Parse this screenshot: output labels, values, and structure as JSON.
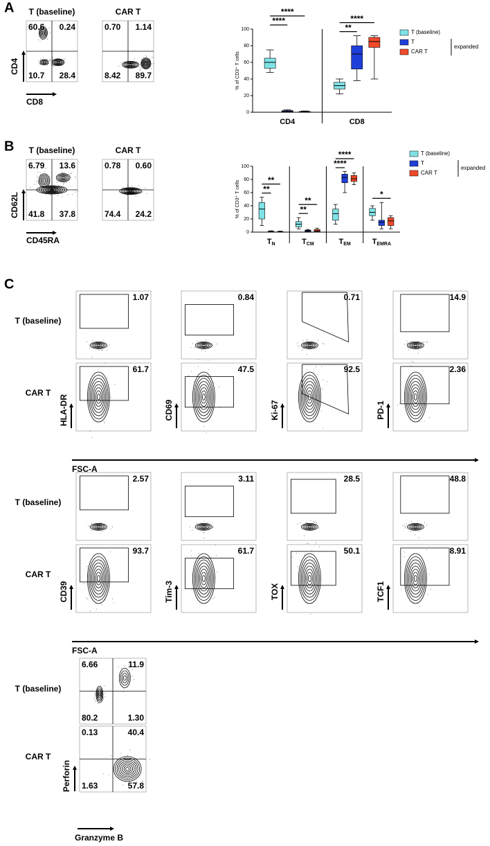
{
  "panel_a": {
    "label": "A",
    "y_axis": "CD4",
    "x_axis": "CD8",
    "plots": [
      {
        "title": "T (baseline)",
        "quadrants": [
          "60.6",
          "0.24",
          "10.7",
          "28.4"
        ]
      },
      {
        "title": "CAR T",
        "quadrants": [
          "0.70",
          "1.14",
          "8.42",
          "89.7"
        ]
      }
    ]
  },
  "panel_b": {
    "label": "B",
    "y_axis": "CD62L",
    "x_axis": "CD45RA",
    "plots": [
      {
        "title": "T (baseline)",
        "quadrants": [
          "6.79",
          "13.6",
          "41.8",
          "37.8"
        ]
      },
      {
        "title": "CAR T",
        "quadrants": [
          "0.78",
          "0.60",
          "74.4",
          "24.2"
        ]
      }
    ]
  },
  "panel_c": {
    "label": "C",
    "groups": [
      {
        "row_labels": [
          "T (baseline)",
          "CAR T"
        ],
        "x_axis": "FSC-A",
        "plots": [
          {
            "marker": "HLA-DR",
            "gates": [
              "1.07",
              "61.7"
            ]
          },
          {
            "marker": "CD69",
            "gates": [
              "0.84",
              "47.5"
            ]
          },
          {
            "marker": "Ki-67",
            "gates": [
              "0.71",
              "92.5"
            ]
          },
          {
            "marker": "PD-1",
            "gates": [
              "14.9",
              "2.36"
            ]
          }
        ]
      },
      {
        "row_labels": [
          "T (baseline)",
          "CAR T"
        ],
        "x_axis": "FSC-A",
        "plots": [
          {
            "marker": "CD39",
            "gates": [
              "2.57",
              "93.7"
            ]
          },
          {
            "marker": "Tim-3",
            "gates": [
              "3.11",
              "61.7"
            ]
          },
          {
            "marker": "TOX",
            "gates": [
              "28.5",
              "50.1"
            ]
          },
          {
            "marker": "TCF1",
            "gates": [
              "48.8",
              "8.91"
            ]
          }
        ]
      }
    ],
    "quadrant_group": {
      "row_labels": [
        "T (baseline)",
        "CAR T"
      ],
      "y_axis": "Perforin",
      "x_axis": "Granzyme B",
      "quadrants": [
        [
          "6.66",
          "11.9",
          "80.2",
          "1.30"
        ],
        [
          "0.13",
          "40.4",
          "1.63",
          "57.8"
        ]
      ]
    }
  },
  "chart_data": [
    {
      "type": "box",
      "y_label": "% of CD3⁺ T cells",
      "categories": [
        "CD4",
        "CD8"
      ],
      "ylim": [
        0,
        100
      ],
      "yticks": [
        0,
        20,
        40,
        60,
        80,
        100
      ],
      "separators": true,
      "legend_note": "expanded",
      "series": [
        {
          "name": "T (baseline)",
          "color": "#7fe3e6",
          "values": [
            [
              48,
              53,
              60,
              65,
              75
            ],
            [
              22,
              28,
              32,
              36,
              40
            ]
          ]
        },
        {
          "name": "T",
          "color": "#1f3fd9",
          "values": [
            [
              0,
              0.5,
              1,
              2,
              3
            ],
            [
              38,
              52,
              70,
              80,
              92
            ]
          ]
        },
        {
          "name": "CAR T",
          "color": "#f04a2a",
          "values": [
            [
              0,
              0.3,
              0.6,
              1,
              1.5
            ],
            [
              40,
              78,
              85,
              90,
              92
            ]
          ]
        }
      ],
      "annotations": [
        {
          "category": 0,
          "pair": [
            0,
            1
          ],
          "text": "****"
        },
        {
          "category": 0,
          "pair": [
            0,
            2
          ],
          "text": "****"
        },
        {
          "category": 1,
          "pair": [
            0,
            1
          ],
          "text": "**"
        },
        {
          "category": 1,
          "pair": [
            0,
            2
          ],
          "text": "****"
        }
      ]
    },
    {
      "type": "box",
      "y_label": "% of CD3⁺ T cells",
      "categories": [
        "TN",
        "TCM",
        "TEM",
        "TEMRA"
      ],
      "ylim": [
        0,
        100
      ],
      "yticks": [
        0,
        20,
        40,
        60,
        80,
        100
      ],
      "separators": true,
      "legend_note": "expanded",
      "series": [
        {
          "name": "T (baseline)",
          "color": "#7fe3e6",
          "values": [
            [
              10,
              20,
              35,
              45,
              53
            ],
            [
              5,
              8,
              12,
              16,
              22
            ],
            [
              12,
              18,
              28,
              35,
              42
            ],
            [
              18,
              25,
              30,
              36,
              40
            ]
          ]
        },
        {
          "name": "T",
          "color": "#1f3fd9",
          "values": [
            [
              0,
              0.5,
              1,
              1.5,
              2
            ],
            [
              0,
              1,
              2,
              3,
              4
            ],
            [
              60,
              75,
              83,
              88,
              92
            ],
            [
              5,
              10,
              15,
              18,
              45
            ]
          ]
        },
        {
          "name": "CAR T",
          "color": "#f04a2a",
          "values": [
            [
              0,
              0.3,
              0.5,
              1,
              1.5
            ],
            [
              0,
              1,
              2,
              4,
              6
            ],
            [
              72,
              77,
              81,
              86,
              90
            ],
            [
              5,
              10,
              17,
              22,
              25
            ]
          ]
        }
      ],
      "annotations": [
        {
          "category": 0,
          "pair": [
            0,
            1
          ],
          "text": "**"
        },
        {
          "category": 0,
          "pair": [
            0,
            2
          ],
          "text": "**"
        },
        {
          "category": 1,
          "pair": [
            0,
            1
          ],
          "text": "**"
        },
        {
          "category": 1,
          "pair": [
            0,
            2
          ],
          "text": "**"
        },
        {
          "category": 2,
          "pair": [
            0,
            1
          ],
          "text": "****"
        },
        {
          "category": 2,
          "pair": [
            0,
            2
          ],
          "text": "****"
        },
        {
          "category": 3,
          "pair": [
            0,
            2
          ],
          "text": "*"
        }
      ]
    }
  ]
}
